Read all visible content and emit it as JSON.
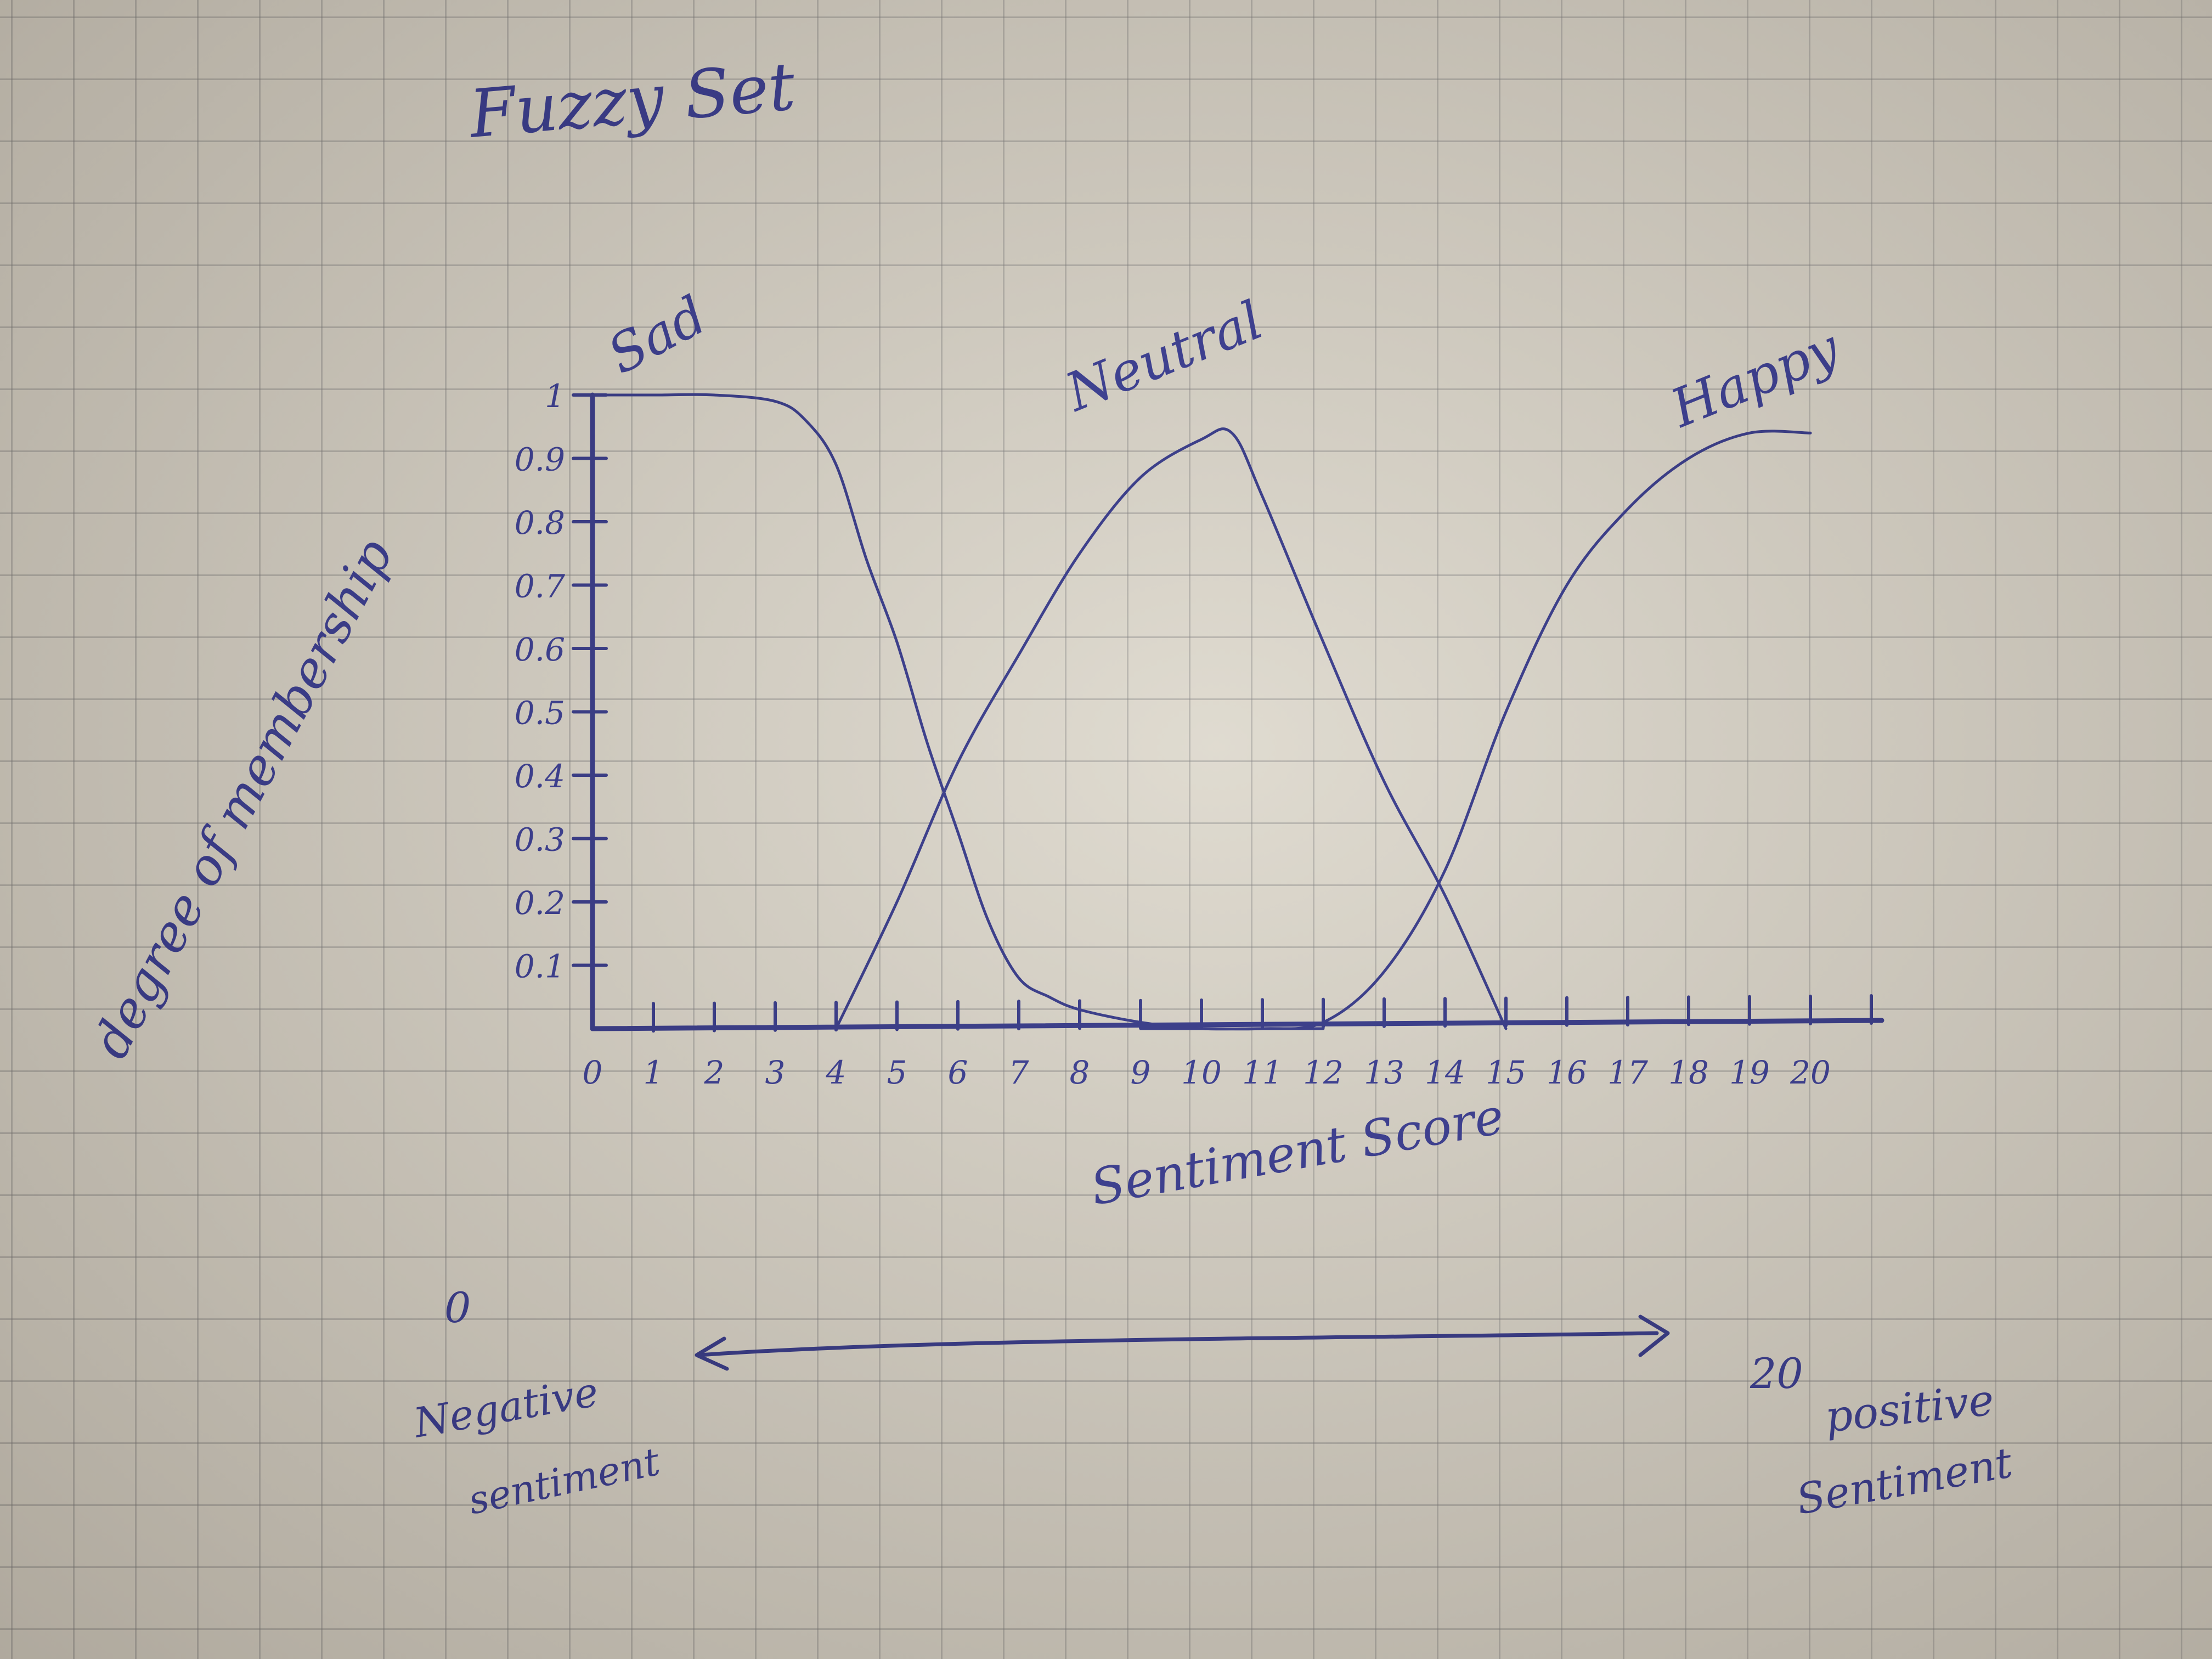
{
  "chart_data": {
    "type": "line",
    "title": "Fuzzy Set",
    "xlabel": "Sentiment Score",
    "ylabel": "degree of membership",
    "x_ticks": [
      "0",
      "1",
      "2",
      "3",
      "4",
      "5",
      "6",
      "7",
      "8",
      "9",
      "10",
      "11",
      "12",
      "13",
      "14",
      "15",
      "16",
      "17",
      "18",
      "19",
      "20"
    ],
    "y_ticks": [
      "0.1",
      "0.2",
      "0.3",
      "0.4",
      "0.5",
      "0.6",
      "0.7",
      "0.8",
      "0.9",
      "1"
    ],
    "xlim": [
      0,
      21
    ],
    "ylim": [
      0,
      1
    ],
    "grid": false,
    "series": [
      {
        "name": "Sad",
        "x": [
          0,
          1,
          2,
          3,
          3.5,
          4,
          4.5,
          5,
          5.5,
          6,
          6.5,
          7,
          7.5,
          8,
          9,
          10,
          11,
          12
        ],
        "y": [
          1.0,
          1.0,
          1.0,
          0.99,
          0.96,
          0.89,
          0.74,
          0.61,
          0.45,
          0.31,
          0.17,
          0.08,
          0.05,
          0.03,
          0.01,
          0.0,
          0.0,
          0.0
        ]
      },
      {
        "name": "Neutral",
        "x": [
          4,
          5,
          6,
          7,
          8,
          9,
          10,
          10.5,
          11,
          12,
          13,
          14,
          15
        ],
        "y": [
          0.0,
          0.2,
          0.42,
          0.59,
          0.75,
          0.87,
          0.93,
          0.94,
          0.84,
          0.61,
          0.39,
          0.21,
          0.0
        ]
      },
      {
        "name": "Happy",
        "x": [
          9,
          10,
          11,
          12,
          13,
          14,
          15,
          16,
          17,
          18,
          19,
          20
        ],
        "y": [
          0.0,
          0.0,
          0.0,
          0.01,
          0.09,
          0.25,
          0.5,
          0.7,
          0.82,
          0.9,
          0.94,
          0.94
        ]
      }
    ]
  },
  "notes": {
    "left_end_value": "0",
    "left_end_label_1": "Negative",
    "left_end_label_2": "sentiment",
    "right_end_value": "20",
    "right_end_label_1": "positive",
    "right_end_label_2": "Sentiment"
  },
  "colors": {
    "ink": "#2b2f86",
    "paper": "#dcd7cb",
    "grid": "#8c8c8c"
  }
}
